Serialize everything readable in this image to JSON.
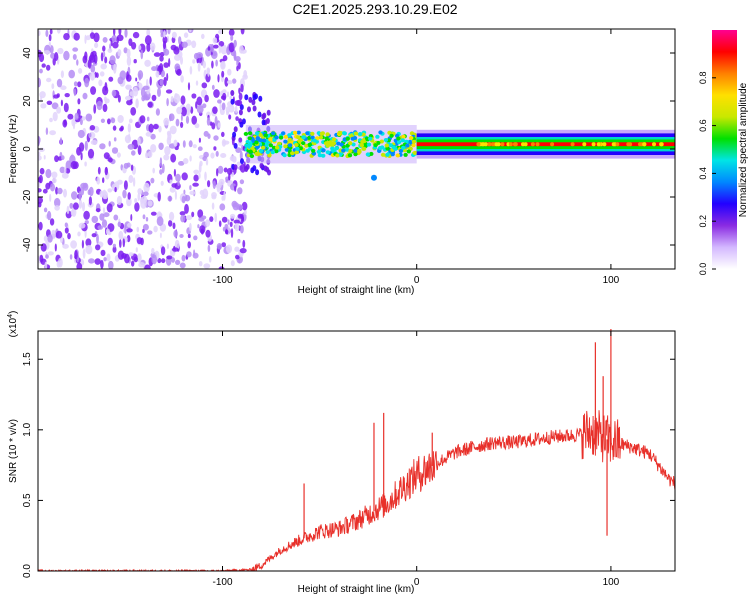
{
  "title": "C2E1.2025.293.10.29.E02",
  "chart_data": [
    {
      "type": "heatmap",
      "title": "C2E1.2025.293.10.29.E02",
      "xlabel": "Height of straight line (km)",
      "ylabel": "Frequency (Hz)",
      "xlim": [
        -195,
        133
      ],
      "ylim": [
        -50,
        50
      ],
      "xticks": [
        -100,
        0,
        100
      ],
      "xtick_labels": [
        "-100",
        "0",
        "100"
      ],
      "yticks": [
        -40,
        -20,
        0,
        20,
        40
      ],
      "ytick_labels": [
        "-40",
        "-20",
        "0",
        "20",
        "40"
      ],
      "colorbar": {
        "label": "Normalized spectral amplitude",
        "ticks": [
          0.0,
          0.2,
          0.4,
          0.6,
          0.8
        ],
        "tick_labels": [
          "0.0",
          "0.2",
          "0.4",
          "0.6",
          "0.8"
        ],
        "range": [
          0,
          1
        ],
        "colors": [
          "#ffffff",
          "#d4b8ff",
          "#8a2be2",
          "#2200ff",
          "#0088ff",
          "#00e5e5",
          "#00e000",
          "#c8e800",
          "#ffe000",
          "#ff8000",
          "#ff0000",
          "#ff0090"
        ]
      },
      "regions": [
        {
          "name": "noise",
          "x_range": [
            -195,
            -88
          ],
          "f_range": [
            -50,
            50
          ],
          "amplitude": 0.2
        },
        {
          "name": "transition",
          "x_range": [
            -95,
            -75
          ],
          "f_range": [
            -10,
            25
          ],
          "amplitude": 0.4
        },
        {
          "name": "dispersive-band",
          "x_range": [
            -88,
            0
          ],
          "center_hz": 2,
          "halfwidth_hz": 5,
          "amplitude": 0.5
        },
        {
          "name": "tone",
          "x_range": [
            0,
            133
          ],
          "center_hz": 2,
          "halfwidth_hz": 3,
          "amplitude": 0.8
        }
      ]
    },
    {
      "type": "line",
      "xlabel": "Height of straight line (km)",
      "ylabel": "SNR (10 * v/v)",
      "scale_label": "(x10",
      "scale_exp": "4",
      "xlim": [
        -195,
        133
      ],
      "ylim": [
        0,
        1.7
      ],
      "xticks": [
        -100,
        0,
        100
      ],
      "xtick_labels": [
        "-100",
        "0",
        "100"
      ],
      "yticks": [
        0.0,
        0.5,
        1.0,
        1.5
      ],
      "ytick_labels": [
        "0.0",
        "0.5",
        "1.0",
        "1.5"
      ],
      "series": [
        {
          "name": "SNR",
          "color": "#e8302a",
          "x": [
            -195,
            -150,
            -100,
            -85,
            -80,
            -70,
            -60,
            -50,
            -40,
            -30,
            -25,
            -20,
            -15,
            -10,
            -5,
            0,
            10,
            20,
            30,
            40,
            50,
            60,
            70,
            80,
            85,
            90,
            95,
            100,
            105,
            110,
            120,
            130,
            133
          ],
          "y": [
            0.0,
            0.0,
            0.0,
            0.01,
            0.04,
            0.15,
            0.22,
            0.28,
            0.3,
            0.36,
            0.4,
            0.44,
            0.48,
            0.55,
            0.62,
            0.68,
            0.76,
            0.84,
            0.88,
            0.91,
            0.91,
            0.93,
            0.95,
            0.96,
            0.97,
            0.99,
            0.95,
            0.92,
            0.9,
            0.88,
            0.83,
            0.65,
            0.62
          ]
        }
      ],
      "spikes": [
        {
          "x": -58,
          "y": 0.62
        },
        {
          "x": -22,
          "y": 1.05
        },
        {
          "x": -17,
          "y": 1.12
        },
        {
          "x": 8,
          "y": 0.98
        },
        {
          "x": 92,
          "y": 1.62
        },
        {
          "x": 96,
          "y": 1.38
        },
        {
          "x": 100,
          "y": 1.72
        },
        {
          "x": 98,
          "y": 0.25
        }
      ]
    }
  ]
}
